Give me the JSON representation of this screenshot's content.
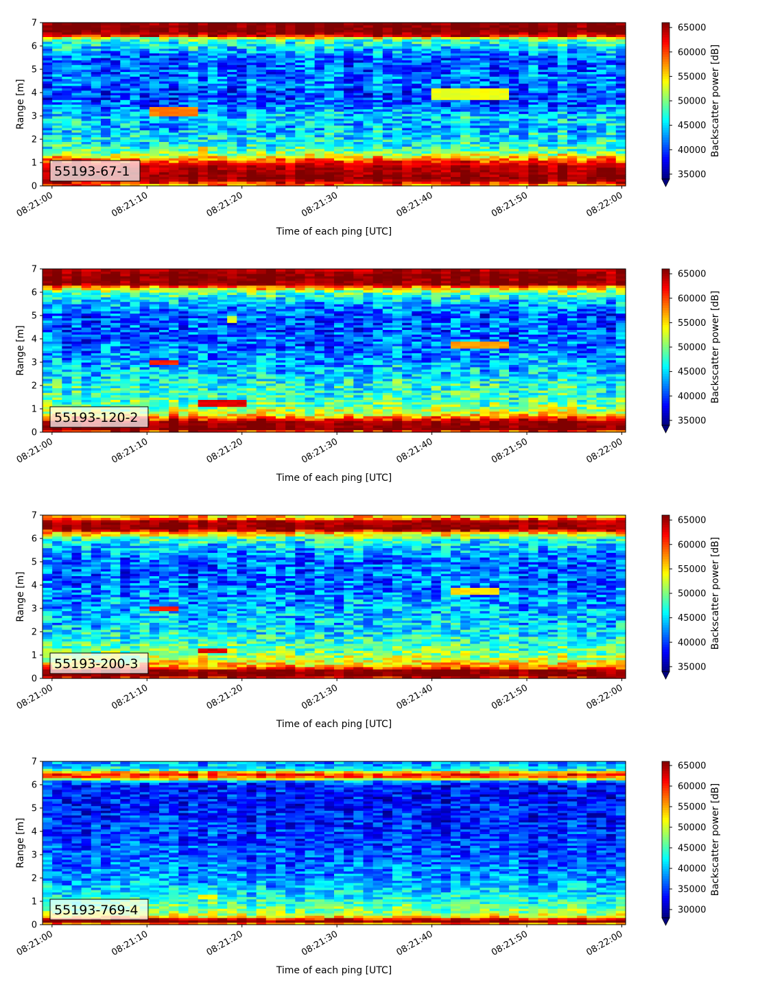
{
  "chart_data": [
    {
      "type": "heatmap",
      "label": "55193-67-1",
      "xlabel": "Time of each ping [UTC]",
      "ylabel": "Range [m]",
      "x_ticks": [
        "08:21:00",
        "08:21:10",
        "08:21:20",
        "08:21:30",
        "08:21:40",
        "08:21:50",
        "08:22:00"
      ],
      "xlim_seconds": [
        -1,
        60.4
      ],
      "y_ticks": [
        0,
        1,
        2,
        3,
        4,
        5,
        6,
        7
      ],
      "ylim": [
        0,
        7
      ],
      "colorbar": {
        "label": "Backscatter power [dB]",
        "ticks": [
          35000,
          40000,
          45000,
          50000,
          55000,
          60000,
          65000
        ],
        "range": [
          34000,
          66000
        ],
        "extend": "min"
      },
      "colormap": "jet",
      "grid": false,
      "profile": [
        [
          0.0,
          56000
        ],
        [
          0.2,
          64000
        ],
        [
          0.35,
          66000
        ],
        [
          0.6,
          65000
        ],
        [
          0.9,
          64000
        ],
        [
          1.15,
          58000
        ],
        [
          1.4,
          51000
        ],
        [
          1.7,
          47000
        ],
        [
          2.0,
          46000
        ],
        [
          2.5,
          44000
        ],
        [
          3.0,
          45000
        ],
        [
          3.5,
          41000
        ],
        [
          4.0,
          40000
        ],
        [
          4.5,
          42000
        ],
        [
          5.0,
          41000
        ],
        [
          5.5,
          41000
        ],
        [
          6.0,
          46000
        ],
        [
          6.3,
          49000
        ],
        [
          6.45,
          62000
        ],
        [
          6.6,
          66000
        ],
        [
          7.0,
          66000
        ]
      ],
      "features": [
        {
          "t0": 10.5,
          "t1": 15.5,
          "y0": 3.0,
          "y1": 3.4,
          "value": 58000
        },
        {
          "t0": 15.5,
          "t1": 16.5,
          "y0": 1.3,
          "y1": 1.7,
          "value": 56000
        },
        {
          "t0": 39.5,
          "t1": 48.5,
          "y0": 3.7,
          "y1": 4.2,
          "value": 53500
        }
      ]
    },
    {
      "type": "heatmap",
      "label": "55193-120-2",
      "xlabel": "Time of each ping [UTC]",
      "ylabel": "Range [m]",
      "x_ticks": [
        "08:21:00",
        "08:21:10",
        "08:21:20",
        "08:21:30",
        "08:21:40",
        "08:21:50",
        "08:22:00"
      ],
      "xlim_seconds": [
        -1,
        60.4
      ],
      "y_ticks": [
        0,
        1,
        2,
        3,
        4,
        5,
        6,
        7
      ],
      "ylim": [
        0,
        7
      ],
      "colorbar": {
        "label": "Backscatter power [dB]",
        "ticks": [
          35000,
          40000,
          45000,
          50000,
          55000,
          60000,
          65000
        ],
        "range": [
          34000,
          66000
        ],
        "extend": "min"
      },
      "colormap": "jet",
      "grid": false,
      "profile": [
        [
          0.0,
          58000
        ],
        [
          0.15,
          66000
        ],
        [
          0.45,
          65000
        ],
        [
          0.6,
          60000
        ],
        [
          0.8,
          53000
        ],
        [
          1.1,
          50000
        ],
        [
          1.5,
          48000
        ],
        [
          2.0,
          47000
        ],
        [
          2.5,
          45000
        ],
        [
          3.0,
          43000
        ],
        [
          3.5,
          42000
        ],
        [
          4.0,
          41000
        ],
        [
          5.0,
          40500
        ],
        [
          5.5,
          43000
        ],
        [
          6.0,
          49000
        ],
        [
          6.2,
          56000
        ],
        [
          6.35,
          65000
        ],
        [
          6.7,
          66000
        ],
        [
          7.0,
          64000
        ]
      ],
      "features": [
        {
          "t0": 10.5,
          "t1": 13.5,
          "y0": 2.9,
          "y1": 3.1,
          "value": 61000
        },
        {
          "t0": 15.5,
          "t1": 20.5,
          "y0": 1.15,
          "y1": 1.35,
          "value": 63000
        },
        {
          "t0": 41.5,
          "t1": 48.5,
          "y0": 3.65,
          "y1": 3.9,
          "value": 57000
        },
        {
          "t0": 18.5,
          "t1": 19.5,
          "y0": 4.75,
          "y1": 4.95,
          "value": 53000
        }
      ]
    },
    {
      "type": "heatmap",
      "label": "55193-200-3",
      "xlabel": "Time of each ping [UTC]",
      "ylabel": "Range [m]",
      "x_ticks": [
        "08:21:00",
        "08:21:10",
        "08:21:20",
        "08:21:30",
        "08:21:40",
        "08:21:50",
        "08:22:00"
      ],
      "xlim_seconds": [
        -1,
        60.4
      ],
      "y_ticks": [
        0,
        1,
        2,
        3,
        4,
        5,
        6,
        7
      ],
      "ylim": [
        0,
        7
      ],
      "colorbar": {
        "label": "Backscatter power [dB]",
        "ticks": [
          35000,
          40000,
          45000,
          50000,
          55000,
          60000,
          65000
        ],
        "range": [
          34000,
          66000
        ],
        "extend": "min"
      },
      "colormap": "jet",
      "grid": false,
      "profile": [
        [
          0.0,
          58000
        ],
        [
          0.1,
          66000
        ],
        [
          0.35,
          65000
        ],
        [
          0.5,
          57000
        ],
        [
          0.8,
          52000
        ],
        [
          1.2,
          49000
        ],
        [
          1.6,
          47000
        ],
        [
          2.0,
          45000
        ],
        [
          2.5,
          44000
        ],
        [
          3.0,
          43000
        ],
        [
          3.5,
          42000
        ],
        [
          4.0,
          41000
        ],
        [
          5.0,
          41000
        ],
        [
          5.5,
          43000
        ],
        [
          6.0,
          47000
        ],
        [
          6.25,
          56000
        ],
        [
          6.4,
          65000
        ],
        [
          6.75,
          64000
        ],
        [
          6.9,
          56000
        ],
        [
          7.0,
          54000
        ]
      ],
      "features": [
        {
          "t0": 10.5,
          "t1": 13.5,
          "y0": 2.9,
          "y1": 3.1,
          "value": 61000
        },
        {
          "t0": 15.5,
          "t1": 18.5,
          "y0": 1.1,
          "y1": 1.3,
          "value": 63000
        },
        {
          "t0": 41.5,
          "t1": 47.5,
          "y0": 3.6,
          "y1": 3.85,
          "value": 55000
        }
      ]
    },
    {
      "type": "heatmap",
      "label": "55193-769-4",
      "xlabel": "Time of each ping [UTC]",
      "ylabel": "Range [m]",
      "x_ticks": [
        "08:21:00",
        "08:21:10",
        "08:21:20",
        "08:21:30",
        "08:21:40",
        "08:21:50",
        "08:22:00"
      ],
      "xlim_seconds": [
        -1,
        60.4
      ],
      "y_ticks": [
        0,
        1,
        2,
        3,
        4,
        5,
        6,
        7
      ],
      "ylim": [
        0,
        7
      ],
      "colorbar": {
        "label": "Backscatter power [dB]",
        "ticks": [
          30000,
          35000,
          40000,
          45000,
          50000,
          55000,
          60000,
          65000
        ],
        "range": [
          28000,
          66000
        ],
        "extend": "min"
      },
      "colormap": "jet",
      "grid": false,
      "profile": [
        [
          0.0,
          50000
        ],
        [
          0.12,
          66000
        ],
        [
          0.22,
          64000
        ],
        [
          0.32,
          54000
        ],
        [
          0.5,
          48000
        ],
        [
          0.9,
          45000
        ],
        [
          1.3,
          42000
        ],
        [
          1.8,
          39000
        ],
        [
          2.5,
          37000
        ],
        [
          3.5,
          35000
        ],
        [
          4.5,
          34000
        ],
        [
          5.5,
          33000
        ],
        [
          6.0,
          33500
        ],
        [
          6.2,
          40000
        ],
        [
          6.3,
          60000
        ],
        [
          6.4,
          55000
        ],
        [
          6.5,
          64000
        ],
        [
          6.6,
          45000
        ],
        [
          6.8,
          40000
        ],
        [
          7.0,
          38000
        ]
      ],
      "features": [
        {
          "t0": 15.5,
          "t1": 17.5,
          "y0": 1.1,
          "y1": 1.3,
          "value": 52000
        }
      ]
    }
  ]
}
